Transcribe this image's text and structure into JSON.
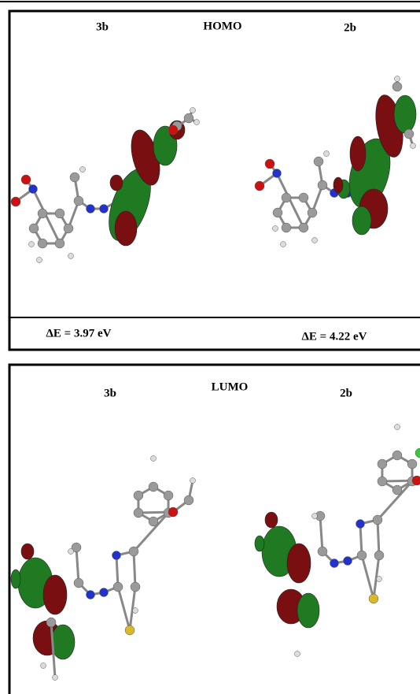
{
  "panels": [
    {
      "title": "HOMO",
      "left_label": "3b",
      "right_label": "2b",
      "left_energy": "ΔE = 3.97 eV",
      "right_energy": "ΔE = 4.22 eV"
    },
    {
      "title": "LUMO",
      "left_label": "3b",
      "right_label": "2b"
    }
  ]
}
